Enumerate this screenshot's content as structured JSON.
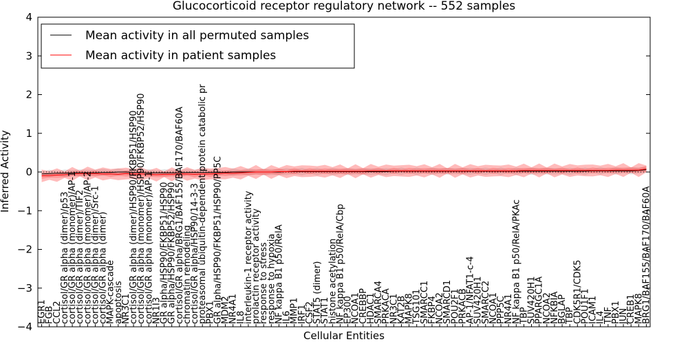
{
  "chart_data": {
    "type": "line",
    "title": "Glucocorticoid receptor regulatory network -- 552 samples",
    "xlabel": "Cellular Entities",
    "ylabel": "Inferred Activity",
    "ylim": [
      -4,
      4
    ],
    "yticks": [
      -4,
      -3,
      -2,
      -1,
      0,
      1,
      2,
      3,
      4
    ],
    "grid": false,
    "legend_position": "top-left",
    "categories": [
      "EGR1",
      "FGB",
      "CCL2",
      "cortisol/GR alpha (dimer)/p53",
      "cortisol/GR alpha (monomer)/AP-1",
      "cortisol/GR alpha (dimer)/TIF2",
      "cortisol/GR alpha (monomer)/AP-2",
      "cortisol/GR alpha (dimer)/Src-1",
      "cortisol/GR alpha (dimer)",
      "MAPK-cascade",
      "apoptosis",
      "NR3C1",
      "cortisol/GR alpha (dimer)/HSP90/FKBP51/HSP90",
      "cortisol/GR alpha (monomer)/HSP90/FKBP52/HSP90",
      "cortisol/GR alpha (monomer)/AP-1",
      "NR1I3",
      "GR alpha/HSP90/FKBP51/HSP90",
      "GR alpha/HSP90/FKBP52/HSP90",
      "cortisol/GR alpha/BRG1/BAF155/BAF170/BAF60A",
      "chromatin remodeling",
      "cortisol/GR alpha/HSP90/14-3-3",
      "proteasomal ubiquitin-dependent protein catabolic process",
      "PBX1",
      "GR alpha/HSP90/FKBP51/HSP90/PP5C",
      "MDM2",
      "NR4A1",
      "IL8",
      "interleukin-1 receptor activity",
      "prolactin receptor activity",
      "response to stress",
      "response to hypoxia",
      "NF kappa B1 p50/RelA",
      "IL6",
      "MMP1",
      "IRF1",
      "CSF2",
      "STAT5 (dimer)",
      "STAT1",
      "histone acetylation",
      "NF kappa B1 p50/RelA/Cbp",
      "EP300",
      "NCOA1",
      "CREBBP",
      "HDAC1",
      "SMARCA4",
      "PRKACA",
      "NR3C1",
      "KAT2B",
      "MAPK8",
      "TSG101",
      "SMARCC1",
      "FKBP4",
      "NCOA2",
      "SMARCD1",
      "POU2F1",
      "PRKACB",
      "AP-1/NFAT1-c-4",
      "SUV420H1",
      "SMARCC2",
      "NCOA1",
      "PPP5C",
      "NR4A1",
      "NF kappa B1 p50/RelA/PKAc",
      "TBP",
      "SUV420H1",
      "PPARGC1A",
      "NCOA2",
      "NFKBIA",
      "BGLAP",
      "TBP",
      "CDK5R1/CDK5",
      "POU1F1",
      "ICAM1",
      "IL4",
      "TNF",
      "PBX1",
      "JUN",
      "CREB1",
      "MAPK8",
      "BRG1/BAF155/BAF170/BAF60A"
    ],
    "x_label_visible_text": [
      "EGR1",
      "FGB",
      "CCL2",
      "cortisol/GR alpha (dimer)/p53",
      "cortisol/GR alpha (monomer)/AP-1",
      "cortisol/GR alpha (dimer)/TIF2",
      "cortisol/GR alpha (monomer)/AP-2",
      "cortisol/GR alpha (dimer)/Src-1",
      "cortisol/GR alpha (dimer)",
      "MAPK-cascade",
      "apoptosis",
      "NR3C1",
      "cortisol/GR alpha (dimer)/HSP90/FKBP51/HSP90",
      "cortisol/GR alpha (monomer)/HSP90/FKBP52/HSP90",
      "cortisol/GR alpha (monomer)/AP-1",
      "NR1I3",
      "GR alpha/HSP90/FKBP51/HSP90",
      "GR alpha/HSP90/FKBP52/HSP90",
      "cortisol/GR alpha/BRG1/BAF155/BAF170/BAF60A",
      "chromatin remodeling",
      "cortisol/GR alpha/HSP90/14-3-3",
      "proteasomal ubiquitin-dependent protein catabolic pr",
      "PBX1",
      "GR alpha/HSP90/FKBP51/HSP90/PP5C",
      "MDM2",
      "NR4A1",
      "IL8",
      "interleukin-1 receptor activity",
      "prolactin receptor activity",
      "response to stress",
      "response to hypoxia",
      "NF kappa B1 p50/RelA",
      "IL6",
      "MMP1",
      "IRF1",
      "CSF2",
      "STAT5 (dimer)",
      "STAT1",
      "histone acetylation",
      "NF kappa B1 p50/RelA/Cbp",
      "EP300",
      "NCOA1",
      "CREBBP",
      "HDAC1",
      "SMARCA4",
      "PRKACA",
      "NR3C1",
      "KAT2B",
      "MAPK8",
      "TSG101",
      "SMARCC1",
      "FKBP4",
      "NCOA2",
      "SMARCD1",
      "POU2F1",
      "PRKACB",
      "AP-1/NFAT1-c-4",
      "SUV420H1",
      "SMARCC2",
      "NCOA1",
      "PPP5C",
      "NR4A1",
      "NF kappa B1 p50/RelA/PKAc",
      "TBP",
      "SUV420H1",
      "PPARGC1A",
      "NCOA2",
      "NFKBIA",
      "BGLAP",
      "TBP",
      "CDK5R1/CDK5",
      "POU1F1",
      "ICAM1",
      "IL4",
      "TNF",
      "PBX1",
      "JUN",
      "CREB1",
      "MAPK8",
      "BRG1/BAF155/BAF170/BAF60A"
    ],
    "series": [
      {
        "name": "Mean activity in all permuted samples",
        "color": "#000000",
        "values": [
          -0.05,
          -0.04,
          -0.03,
          -0.03,
          -0.02,
          -0.02,
          -0.02,
          -0.02,
          -0.01,
          -0.01,
          0.0,
          0.0,
          -0.01,
          -0.01,
          -0.02,
          -0.02,
          -0.02,
          -0.02,
          -0.02,
          -0.01,
          -0.01,
          -0.01,
          -0.01,
          -0.01,
          -0.01,
          0.0,
          0.0,
          0.0,
          0.0,
          0.0,
          0.0,
          0.0,
          0.01,
          0.01,
          0.01,
          0.01,
          0.01,
          0.01,
          0.01,
          0.01,
          0.01,
          0.01,
          0.01,
          0.01,
          0.01,
          0.01,
          0.02,
          0.02,
          0.02,
          0.02,
          0.02,
          0.02,
          0.02,
          0.02,
          0.02,
          0.02,
          0.02,
          0.02,
          0.02,
          0.02,
          0.02,
          0.02,
          0.02,
          0.02,
          0.02,
          0.02,
          0.02,
          0.02,
          0.02,
          0.02,
          0.02,
          0.02,
          0.03,
          0.03,
          0.03,
          0.03,
          0.03,
          0.03,
          0.04,
          0.06
        ]
      },
      {
        "name": "Mean activity in patient samples",
        "color": "#ff0000",
        "values": [
          -0.1,
          -0.09,
          -0.08,
          -0.07,
          -0.05,
          -0.04,
          -0.04,
          -0.04,
          -0.05,
          -0.05,
          -0.06,
          -0.04,
          -0.05,
          -0.05,
          -0.06,
          -0.07,
          -0.06,
          -0.06,
          -0.05,
          -0.05,
          -0.06,
          -0.05,
          -0.05,
          -0.04,
          -0.03,
          -0.03,
          -0.02,
          -0.01,
          0.0,
          0.0,
          0.0,
          0.01,
          0.01,
          0.02,
          0.02,
          0.02,
          0.02,
          0.02,
          0.02,
          0.02,
          0.02,
          0.02,
          0.02,
          0.03,
          0.03,
          0.03,
          0.03,
          0.03,
          0.03,
          0.03,
          0.03,
          0.03,
          0.03,
          0.03,
          0.03,
          0.03,
          0.03,
          0.03,
          0.03,
          0.03,
          0.03,
          0.03,
          0.03,
          0.04,
          0.04,
          0.04,
          0.04,
          0.04,
          0.04,
          0.04,
          0.04,
          0.04,
          0.04,
          0.04,
          0.04,
          0.05,
          0.05,
          0.05,
          0.05,
          0.08
        ]
      }
    ],
    "baseline": 0
  }
}
